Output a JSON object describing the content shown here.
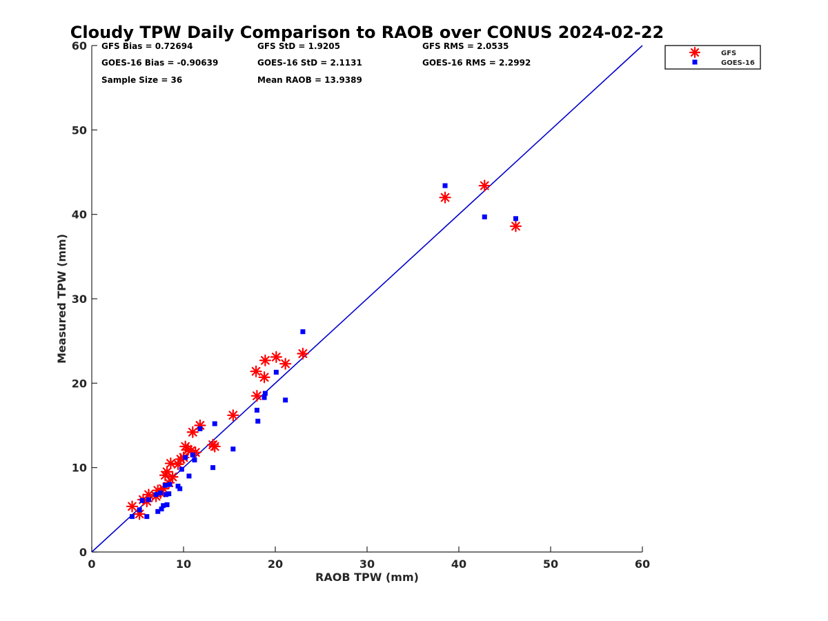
{
  "chart_data": {
    "type": "scatter",
    "title": "Cloudy TPW Daily Comparison to RAOB over CONUS 2024-02-22",
    "xlabel": "RAOB TPW (mm)",
    "ylabel": "Measured TPW (mm)",
    "xlim": [
      0,
      60
    ],
    "ylim": [
      0,
      60
    ],
    "xticks": [
      "0",
      "10",
      "20",
      "30",
      "40",
      "50",
      "60"
    ],
    "yticks": [
      "0",
      "10",
      "20",
      "30",
      "40",
      "50",
      "60"
    ],
    "grid": false,
    "legend_position": "outside-top-right",
    "reference_line": {
      "from": [
        0,
        0
      ],
      "to": [
        60,
        60
      ],
      "color": "#0000cc"
    },
    "stats": [
      [
        "GFS Bias = 0.72694",
        "GFS StD = 1.9205",
        "GFS RMS = 2.0535"
      ],
      [
        "GOES-16 Bias = -0.90639",
        "GOES-16 StD = 2.1131",
        "GOES-16 RMS = 2.2992"
      ],
      [
        "Sample Size = 36",
        "Mean RAOB = 13.9389",
        ""
      ]
    ],
    "series": [
      {
        "name": "GFS",
        "marker": "asterisk",
        "color": "#ff0000",
        "x": [
          4.4,
          5.2,
          5.6,
          6.0,
          6.2,
          7.0,
          7.5,
          7.8,
          8.0,
          8.2,
          8.4,
          8.6,
          9.4,
          9.7,
          10.0,
          10.2,
          10.5,
          10.8,
          11.0,
          11.3,
          11.8,
          13.2,
          13.4,
          15.4,
          17.9,
          18.0,
          18.8,
          18.9,
          20.1,
          21.1,
          23.0,
          38.5,
          42.8,
          46.2,
          7.2,
          8.8
        ],
        "y": [
          5.4,
          4.5,
          6.2,
          6.0,
          6.8,
          6.6,
          7.0,
          7.5,
          9.1,
          9.5,
          8.2,
          10.5,
          10.4,
          11.0,
          11.2,
          12.5,
          12.1,
          12.0,
          14.2,
          11.8,
          15.0,
          12.7,
          12.5,
          16.2,
          21.4,
          18.5,
          20.7,
          22.7,
          23.1,
          22.3,
          23.5,
          42.0,
          43.4,
          38.6,
          7.3,
          8.9
        ]
      },
      {
        "name": "GOES-16",
        "marker": "square",
        "color": "#0000ff",
        "x": [
          4.4,
          5.2,
          5.5,
          6.0,
          6.2,
          7.0,
          7.2,
          7.6,
          7.8,
          8.0,
          8.2,
          8.4,
          8.5,
          9.4,
          9.6,
          9.8,
          10.2,
          10.6,
          11.0,
          11.2,
          11.8,
          13.2,
          13.4,
          15.4,
          18.0,
          18.1,
          18.8,
          18.9,
          20.1,
          21.1,
          23.0,
          38.5,
          42.8,
          46.2,
          7.5,
          8.1
        ],
        "y": [
          4.2,
          5.0,
          6.1,
          4.2,
          6.2,
          6.8,
          4.8,
          5.1,
          5.5,
          7.9,
          5.6,
          6.9,
          8.0,
          7.8,
          7.5,
          9.8,
          11.2,
          9.0,
          11.5,
          10.9,
          14.6,
          10.0,
          15.2,
          12.2,
          16.8,
          15.5,
          18.3,
          18.8,
          21.3,
          18.0,
          26.1,
          43.4,
          39.7,
          39.5,
          7.0,
          6.8
        ]
      }
    ]
  }
}
